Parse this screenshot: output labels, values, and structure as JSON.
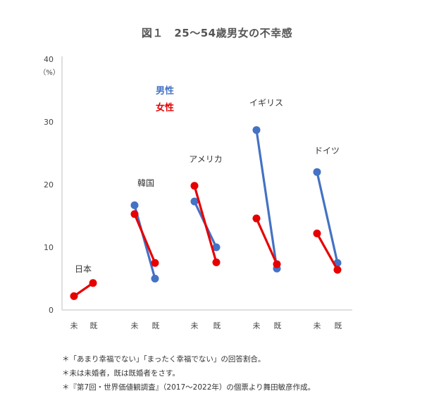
{
  "chart_data": {
    "type": "line",
    "title": "図１　25～54歳男女の不幸感",
    "yunit": "（%）",
    "ylim": [
      0,
      40
    ],
    "yticks": [
      0,
      10,
      20,
      30,
      40
    ],
    "grid": false,
    "category_labels": [
      "未",
      "既"
    ],
    "legend": {
      "placement": "top-left",
      "entries": [
        {
          "name": "男性",
          "color": "#4472C4"
        },
        {
          "name": "女性",
          "color": "#E60000"
        }
      ]
    },
    "groups": [
      {
        "name": "日本",
        "male": null,
        "female": [
          2.2,
          4.3
        ]
      },
      {
        "name": "韓国",
        "male": [
          16.7,
          5.0
        ],
        "female": [
          15.3,
          7.5
        ]
      },
      {
        "name": "アメリカ",
        "male": [
          17.3,
          10.0
        ],
        "female": [
          19.8,
          7.6
        ]
      },
      {
        "name": "イギリス",
        "male": [
          28.7,
          6.6
        ],
        "female": [
          14.6,
          7.3
        ]
      },
      {
        "name": "ドイツ",
        "male": [
          22.0,
          7.5
        ],
        "female": [
          12.2,
          6.4
        ]
      }
    ]
  },
  "notes": [
    "＊「あまり幸福でない」「まったく幸福でない」の回答割合。",
    "＊未は未婚者，既は既婚者をさす。",
    "＊『第7回・世界価値観調査』（2017～2022年）の個票より舞田敏彦作成。"
  ]
}
